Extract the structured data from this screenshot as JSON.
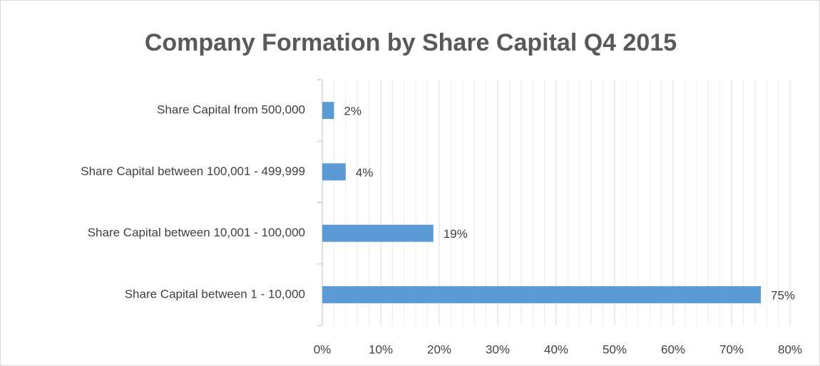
{
  "chart_data": {
    "type": "bar",
    "orientation": "horizontal",
    "title": "Company Formation by Share Capital Q4 2015",
    "categories": [
      "Share Capital from 500,000",
      "Share Capital between 100,001 - 499,999",
      "Share Capital between 10,001 - 100,000",
      "Share Capital between 1 - 10,000"
    ],
    "values": [
      2,
      4,
      19,
      75
    ],
    "value_labels": [
      "2%",
      "4%",
      "19%",
      "75%"
    ],
    "color": "#5b9bd5",
    "xlim": [
      0,
      80
    ],
    "xticks": [
      {
        "value": 0,
        "label": "0%"
      },
      {
        "value": 10,
        "label": "10%"
      },
      {
        "value": 20,
        "label": "20%"
      },
      {
        "value": 30,
        "label": "30%"
      },
      {
        "value": 40,
        "label": "40%"
      },
      {
        "value": 50,
        "label": "50%"
      },
      {
        "value": 60,
        "label": "60%"
      },
      {
        "value": 70,
        "label": "70%"
      },
      {
        "value": 80,
        "label": "80%"
      }
    ],
    "grid": true,
    "minor_grid": true
  }
}
